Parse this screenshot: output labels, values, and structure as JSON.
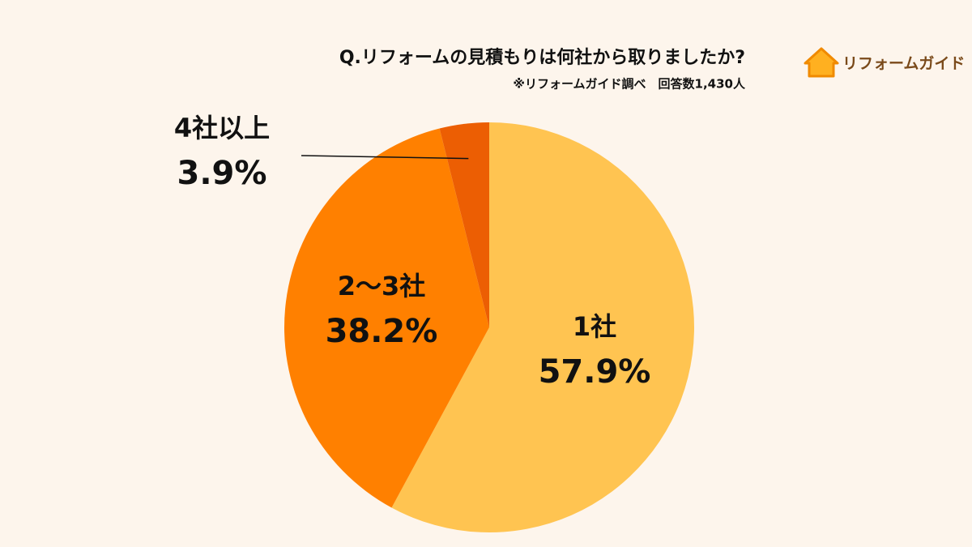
{
  "chart_data": {
    "type": "pie",
    "title": "Q.リフォームの見積もりは何社から取りましたか?",
    "subtitle": "※リフォームガイド調べ　回答数1,430人",
    "categories": [
      "1社",
      "2〜3社",
      "4社以上"
    ],
    "values": [
      57.9,
      38.2,
      3.9
    ],
    "value_labels": [
      "57.9%",
      "38.2%",
      "3.9%"
    ],
    "colors": [
      "#FFC451",
      "#FF8000",
      "#EC5E03"
    ]
  },
  "brand": "リフォームガイド"
}
